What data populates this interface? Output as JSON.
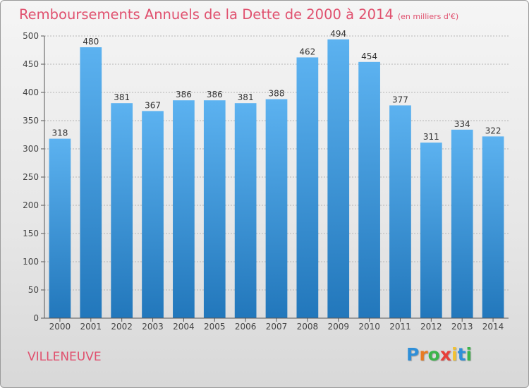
{
  "title": "Remboursements Annuels de la Dette de 2000 à 2014",
  "subtitle": "(en milliers d'€)",
  "location": "VILLENEUVE",
  "logo": {
    "letters": [
      "P",
      "r",
      "o",
      "x",
      "i",
      "t",
      "i"
    ],
    "colors": [
      "#2f8fd8",
      "#e87b22",
      "#3bb54a",
      "#e8403a",
      "#f2c230",
      "#2f8fd8",
      "#3bb54a"
    ]
  },
  "colors": {
    "bar_top": "#5cb2f0",
    "bar_bottom": "#2277bb",
    "title": "#e0506e",
    "grid": "#b5b5b5"
  },
  "chart_data": {
    "type": "bar",
    "categories": [
      "2000",
      "2001",
      "2002",
      "2003",
      "2004",
      "2005",
      "2006",
      "2007",
      "2008",
      "2009",
      "2010",
      "2011",
      "2012",
      "2013",
      "2014"
    ],
    "values": [
      318,
      480,
      381,
      367,
      386,
      386,
      381,
      388,
      462,
      494,
      454,
      377,
      311,
      334,
      322
    ],
    "ylim": [
      0,
      500
    ],
    "yticks": [
      0,
      50,
      100,
      150,
      200,
      250,
      300,
      350,
      400,
      450,
      500
    ],
    "grid": true
  }
}
